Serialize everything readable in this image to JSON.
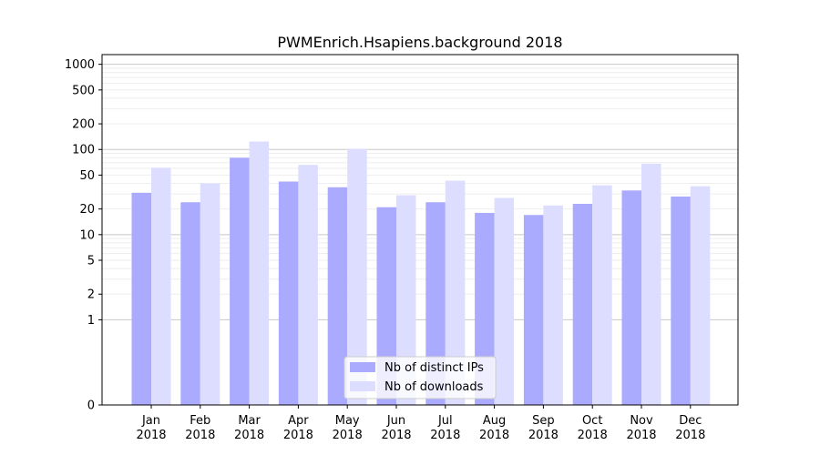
{
  "chart_data": {
    "type": "bar",
    "title": "PWMEnrich.Hsapiens.background 2018",
    "xlabel": "",
    "ylabel": "",
    "yscale": "symlog",
    "ylim": [
      0,
      1300
    ],
    "yticks": [
      0,
      1,
      2,
      5,
      10,
      20,
      50,
      100,
      200,
      500,
      1000
    ],
    "grid": true,
    "legend_position": "bottom-center",
    "categories": [
      "Jan\n2018",
      "Feb\n2018",
      "Mar\n2018",
      "Apr\n2018",
      "May\n2018",
      "Jun\n2018",
      "Jul\n2018",
      "Aug\n2018",
      "Sep\n2018",
      "Oct\n2018",
      "Nov\n2018",
      "Dec\n2018"
    ],
    "series": [
      {
        "name": "Nb of distinct IPs",
        "color": "#aaaaff",
        "values": [
          31,
          24,
          80,
          42,
          36,
          21,
          24,
          18,
          17,
          23,
          33,
          28
        ]
      },
      {
        "name": "Nb of downloads",
        "color": "#ddddff",
        "values": [
          61,
          40,
          124,
          66,
          102,
          29,
          43,
          27,
          22,
          38,
          68,
          37
        ]
      }
    ]
  }
}
